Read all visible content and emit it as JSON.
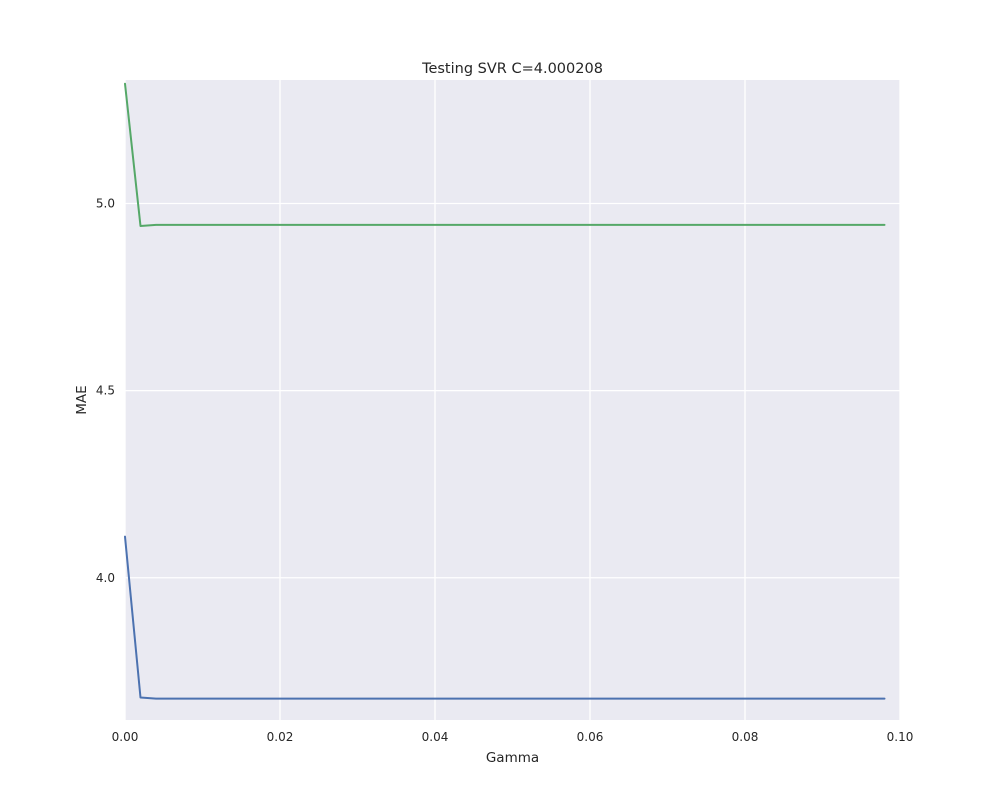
{
  "chart_data": {
    "type": "line",
    "title": "Testing SVR C=4.000208",
    "xlabel": "Gamma",
    "ylabel": "MAE",
    "xlim": [
      0.0,
      0.1
    ],
    "ylim": [
      3.62,
      5.33
    ],
    "xticks": [
      0.0,
      0.02,
      0.04,
      0.06,
      0.08,
      0.1
    ],
    "xtick_labels": [
      "0.00",
      "0.02",
      "0.04",
      "0.06",
      "0.08",
      "0.10"
    ],
    "yticks": [
      4.0,
      4.5,
      5.0
    ],
    "ytick_labels": [
      "4.0",
      "4.5",
      "5.0"
    ],
    "grid": true,
    "legend": "none",
    "style": {
      "background": "#eaeaf2",
      "grid_color": "#ffffff"
    },
    "series": [
      {
        "color": "#4c72b0",
        "x": [
          0.0,
          0.002,
          0.004,
          0.006,
          0.01,
          0.02,
          0.04,
          0.06,
          0.08,
          0.098
        ],
        "y": [
          4.11,
          3.68,
          3.677,
          3.677,
          3.677,
          3.677,
          3.677,
          3.677,
          3.677,
          3.677
        ]
      },
      {
        "color": "#55a868",
        "x": [
          0.0,
          0.002,
          0.004,
          0.006,
          0.01,
          0.02,
          0.04,
          0.06,
          0.08,
          0.098
        ],
        "y": [
          5.32,
          4.94,
          4.943,
          4.943,
          4.943,
          4.943,
          4.943,
          4.943,
          4.943,
          4.943
        ]
      }
    ]
  }
}
